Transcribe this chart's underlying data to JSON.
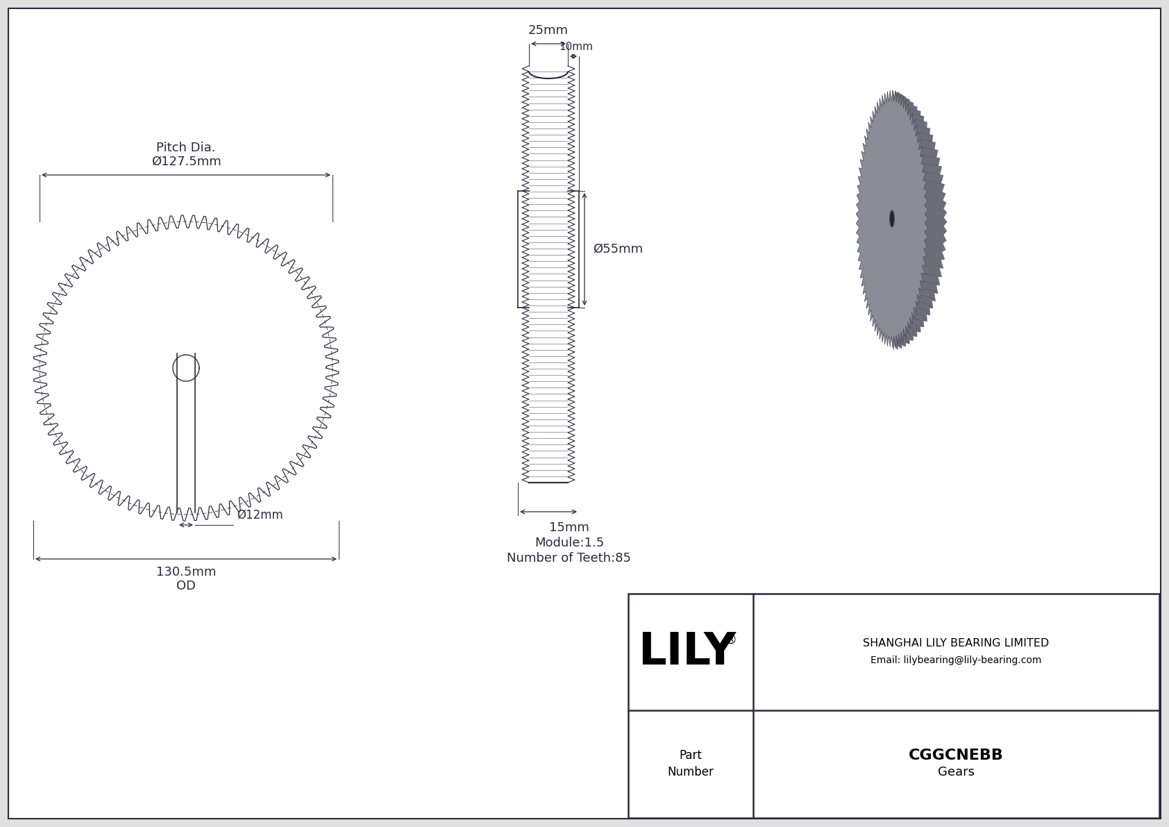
{
  "bg_color": "#e0e0e0",
  "drawing_bg": "#ffffff",
  "line_color": "#2a2a3a",
  "pitch_dia_text": "Ø127.5mm",
  "pitch_dia_label": "Pitch Dia.",
  "od_text": "130.5mm",
  "od_label": "OD",
  "bore_text": "Ø12mm",
  "width_total_text": "25mm",
  "width_hub_text": "10mm",
  "hub_dia_text": "Ø55mm",
  "module_text": "Module:1.5",
  "teeth_text": "Number of Teeth:85",
  "width_side_text": "15mm",
  "company": "SHANGHAI LILY BEARING LIMITED",
  "email": "Email: lilybearing@lily-bearing.com",
  "part_number": "CGGCNEBB",
  "part_type": "Gears",
  "num_teeth": 85,
  "gear_color_3d": "#8c8c98",
  "gear_color_3d_side": "#6e6e7a",
  "gear_color_3d_dark": "#4a4a56",
  "gear_color_3d_back": "#7a7a86"
}
